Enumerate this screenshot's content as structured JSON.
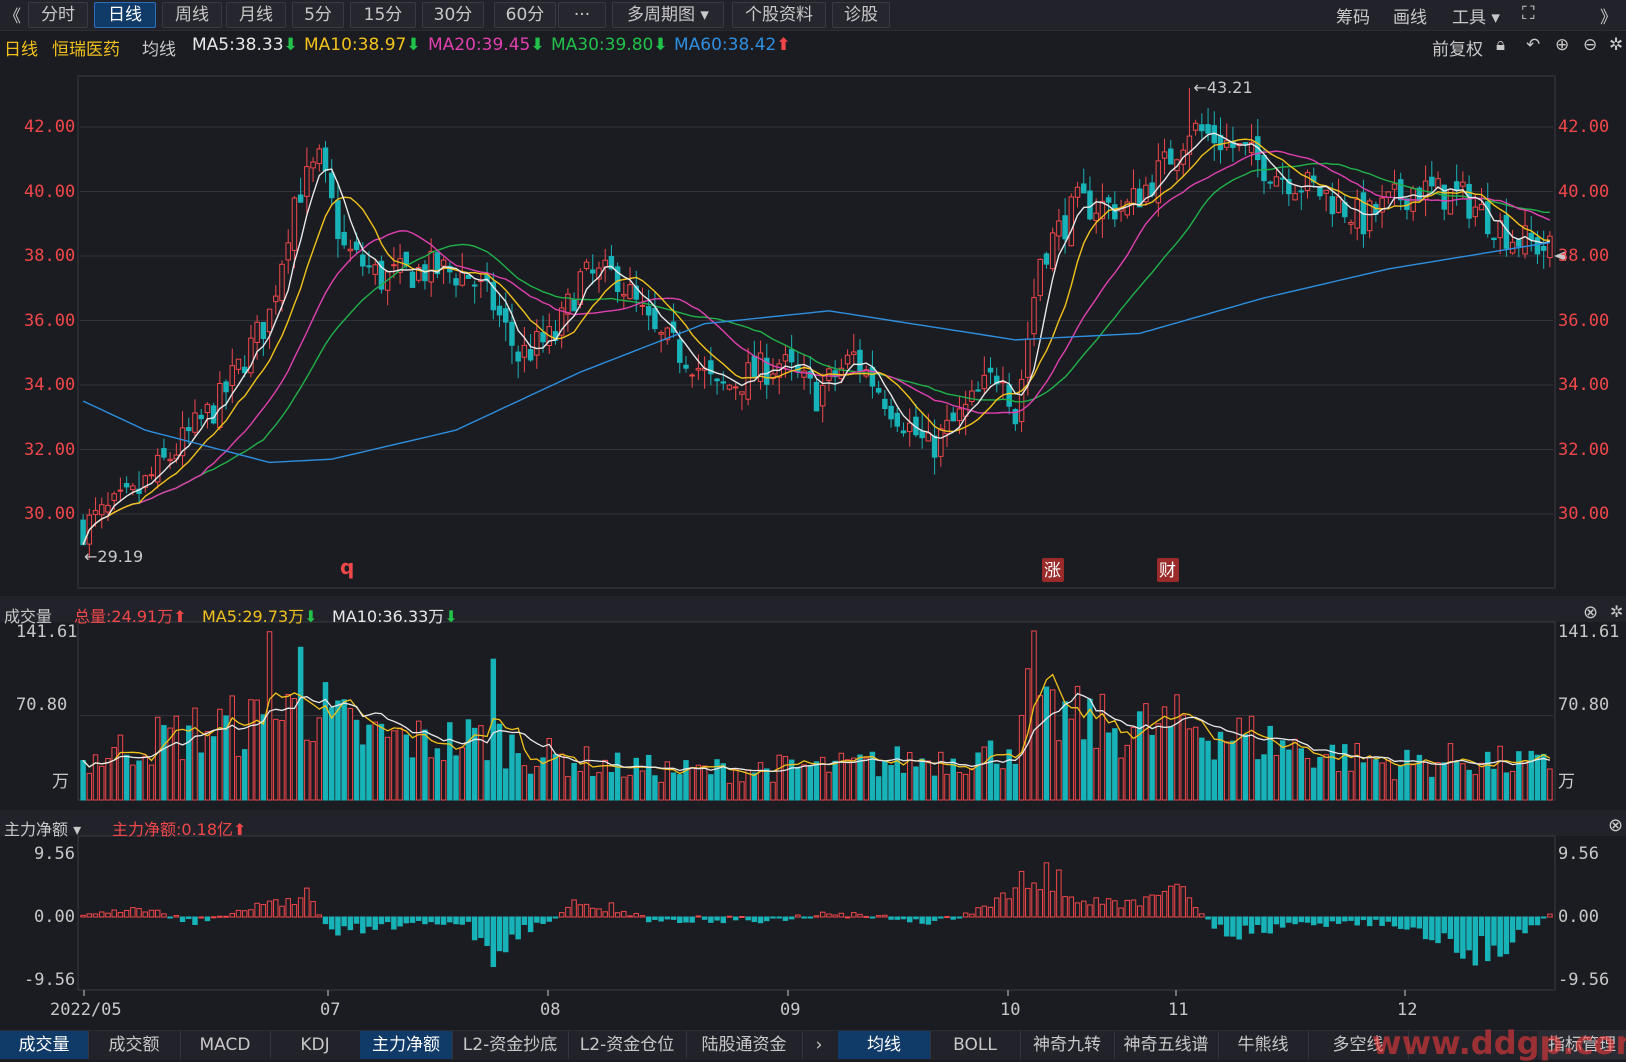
{
  "toolbar": {
    "back": "《",
    "tabs": [
      "分时",
      "日线",
      "周线",
      "月线",
      "5分",
      "15分",
      "30分",
      "60分",
      "···",
      "多周期图 ▾",
      "个股资料",
      "诊股"
    ],
    "active": "日线",
    "right": [
      "筹码",
      "画线",
      "工具 ▾"
    ]
  },
  "info": {
    "period": "日线",
    "name": "恒瑞医药",
    "ma_label": "均线",
    "ma5": "MA5:38.33",
    "ma10": "MA10:38.97",
    "ma20": "MA20:39.45",
    "ma30": "MA30:39.80",
    "ma60": "MA60:38.42",
    "adjust": "前复权"
  },
  "colors": {
    "up": "#f0474a",
    "down": "#17b3b8",
    "ma5": "#e8e8e8",
    "ma10": "#f2c21c",
    "ma20": "#e040b0",
    "ma30": "#21b14a",
    "ma60": "#2e8fe0"
  },
  "price_axis": [
    "42.00",
    "40.00",
    "38.00",
    "36.00",
    "34.00",
    "32.00",
    "30.00"
  ],
  "price_annotations": {
    "high": "←43.21",
    "low": "←29.19"
  },
  "markers": {
    "q": "q",
    "zhang": "涨",
    "cai": "财"
  },
  "volume": {
    "label": "成交量",
    "total": "总量:24.91万",
    "ma5": "MA5:29.73万",
    "ma10": "MA10:36.33万",
    "axis": [
      "141.61",
      "70.80",
      "万"
    ]
  },
  "fund": {
    "label": "主力净额 ▾",
    "value": "主力净额:0.18亿",
    "axis": [
      "9.56",
      "0.00",
      "-9.56"
    ]
  },
  "dates": [
    "2022/05",
    "07",
    "08",
    "09",
    "10",
    "11",
    "12"
  ],
  "bottom_tabs_left": [
    "成交量",
    "成交额",
    "MACD",
    "KDJ",
    "主力净额",
    "L2-资金抄底",
    "L2-资金仓位",
    "陆股通资金"
  ],
  "bottom_tabs_right": [
    "均线",
    "BOLL",
    "神奇九转",
    "神奇五线谱",
    "牛熊线",
    "多空线"
  ],
  "bottom_right": "指标管理",
  "watermark": "www.ddgp.com",
  "chart_data": {
    "type": "candlestick",
    "title": "恒瑞医药 日线",
    "ylim": [
      28.4,
      43.8
    ],
    "x_labels": [
      "2022/05",
      "07",
      "08",
      "09",
      "10",
      "11",
      "12"
    ],
    "high_marker": 43.21,
    "low_marker": 29.19,
    "ma_latest": {
      "MA5": 38.33,
      "MA10": 38.97,
      "MA20": 39.45,
      "MA30": 39.8,
      "MA60": 38.42
    },
    "volume_ylim": [
      0,
      141.61
    ],
    "fund_ylim": [
      -9.56,
      9.56
    ],
    "price_keypoints": [
      [
        0,
        29.6
      ],
      [
        8,
        30.5
      ],
      [
        14,
        31.8
      ],
      [
        22,
        33.5
      ],
      [
        30,
        36.2
      ],
      [
        34,
        39.8
      ],
      [
        38,
        40.9
      ],
      [
        42,
        38.2
      ],
      [
        48,
        37.3
      ],
      [
        56,
        37.6
      ],
      [
        62,
        37.4
      ],
      [
        66,
        36.5
      ],
      [
        70,
        34.9
      ],
      [
        76,
        35.5
      ],
      [
        80,
        37.3
      ],
      [
        86,
        37.4
      ],
      [
        92,
        35.5
      ],
      [
        98,
        34.8
      ],
      [
        102,
        33.8
      ],
      [
        106,
        34.2
      ],
      [
        112,
        34.7
      ],
      [
        118,
        33.7
      ],
      [
        124,
        34.9
      ],
      [
        130,
        33.4
      ],
      [
        136,
        32.0
      ],
      [
        142,
        33.2
      ],
      [
        148,
        34.6
      ],
      [
        150,
        33.0
      ],
      [
        154,
        38.0
      ],
      [
        160,
        39.6
      ],
      [
        168,
        39.5
      ],
      [
        174,
        40.8
      ],
      [
        178,
        42.0
      ],
      [
        184,
        41.5
      ],
      [
        192,
        40.6
      ],
      [
        200,
        39.9
      ],
      [
        206,
        39.1
      ],
      [
        214,
        40.1
      ],
      [
        222,
        39.8
      ],
      [
        230,
        38.6
      ],
      [
        236,
        38.2
      ]
    ],
    "ma60_keypoints": [
      [
        0,
        33.5
      ],
      [
        10,
        32.6
      ],
      [
        30,
        31.6
      ],
      [
        40,
        31.7
      ],
      [
        60,
        32.6
      ],
      [
        80,
        34.4
      ],
      [
        100,
        35.9
      ],
      [
        120,
        36.3
      ],
      [
        140,
        35.7
      ],
      [
        150,
        35.4
      ],
      [
        170,
        35.6
      ],
      [
        190,
        36.7
      ],
      [
        210,
        37.6
      ],
      [
        236,
        38.42
      ]
    ],
    "volume_keypoints": [
      [
        0,
        32
      ],
      [
        10,
        48
      ],
      [
        20,
        60
      ],
      [
        30,
        65
      ],
      [
        36,
        80
      ],
      [
        44,
        55
      ],
      [
        56,
        48
      ],
      [
        66,
        52
      ],
      [
        72,
        38
      ],
      [
        86,
        28
      ],
      [
        96,
        24
      ],
      [
        108,
        26
      ],
      [
        122,
        28
      ],
      [
        136,
        34
      ],
      [
        146,
        38
      ],
      [
        152,
        55
      ],
      [
        156,
        70
      ],
      [
        166,
        60
      ],
      [
        178,
        62
      ],
      [
        188,
        52
      ],
      [
        200,
        38
      ],
      [
        212,
        30
      ],
      [
        222,
        34
      ],
      [
        236,
        28
      ]
    ],
    "fund_keypoints": [
      [
        0,
        0.4
      ],
      [
        10,
        1.2
      ],
      [
        18,
        -0.8
      ],
      [
        28,
        1.6
      ],
      [
        36,
        3.8
      ],
      [
        40,
        -2.6
      ],
      [
        48,
        -1.2
      ],
      [
        62,
        -1.0
      ],
      [
        66,
        -6.9
      ],
      [
        74,
        -0.9
      ],
      [
        80,
        2.8
      ],
      [
        92,
        -0.6
      ],
      [
        110,
        -0.5
      ],
      [
        122,
        0.9
      ],
      [
        136,
        -0.8
      ],
      [
        146,
        1.3
      ],
      [
        152,
        9.56
      ],
      [
        160,
        3.2
      ],
      [
        170,
        2.5
      ],
      [
        176,
        4.5
      ],
      [
        184,
        -3.4
      ],
      [
        196,
        -1.1
      ],
      [
        210,
        -0.9
      ],
      [
        226,
        -6.5
      ],
      [
        236,
        0.3
      ]
    ]
  }
}
